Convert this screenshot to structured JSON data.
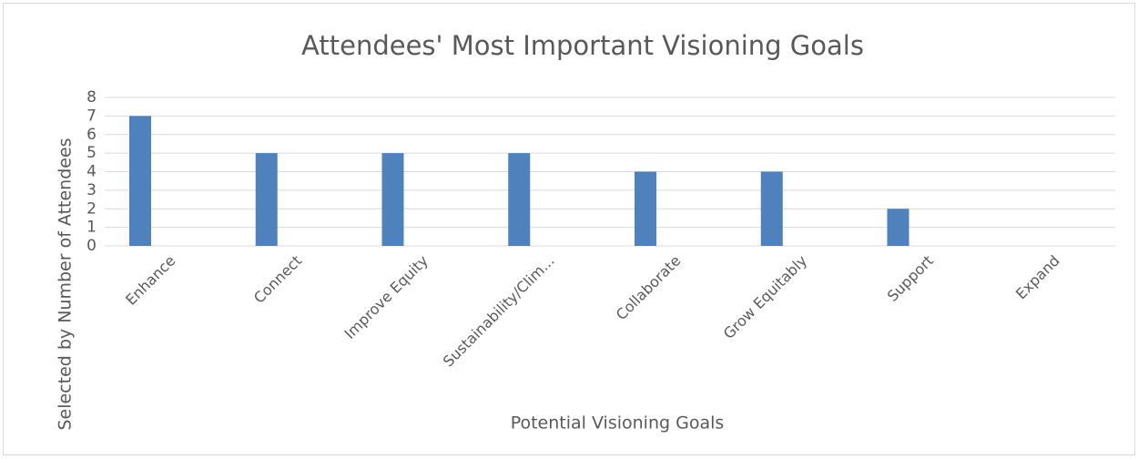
{
  "chart_data": {
    "type": "bar",
    "title": "Attendees' Most Important Visioning Goals",
    "x_label": "Potential Visioning Goals",
    "y_label": "Selected by Number of Attendees",
    "categories": [
      "Enhance",
      "Connect",
      "Improve Equity",
      "Sustainability/Clim...",
      "Collaborate",
      "Grow Equitably",
      "Support",
      "Expand"
    ],
    "values": [
      7,
      5,
      5,
      5,
      4,
      4,
      2,
      0
    ],
    "color": "#4f81bd",
    "ylim": [
      0,
      8
    ],
    "yticks": [
      0,
      1,
      2,
      3,
      4,
      5,
      6,
      7,
      8
    ],
    "grid": true
  }
}
